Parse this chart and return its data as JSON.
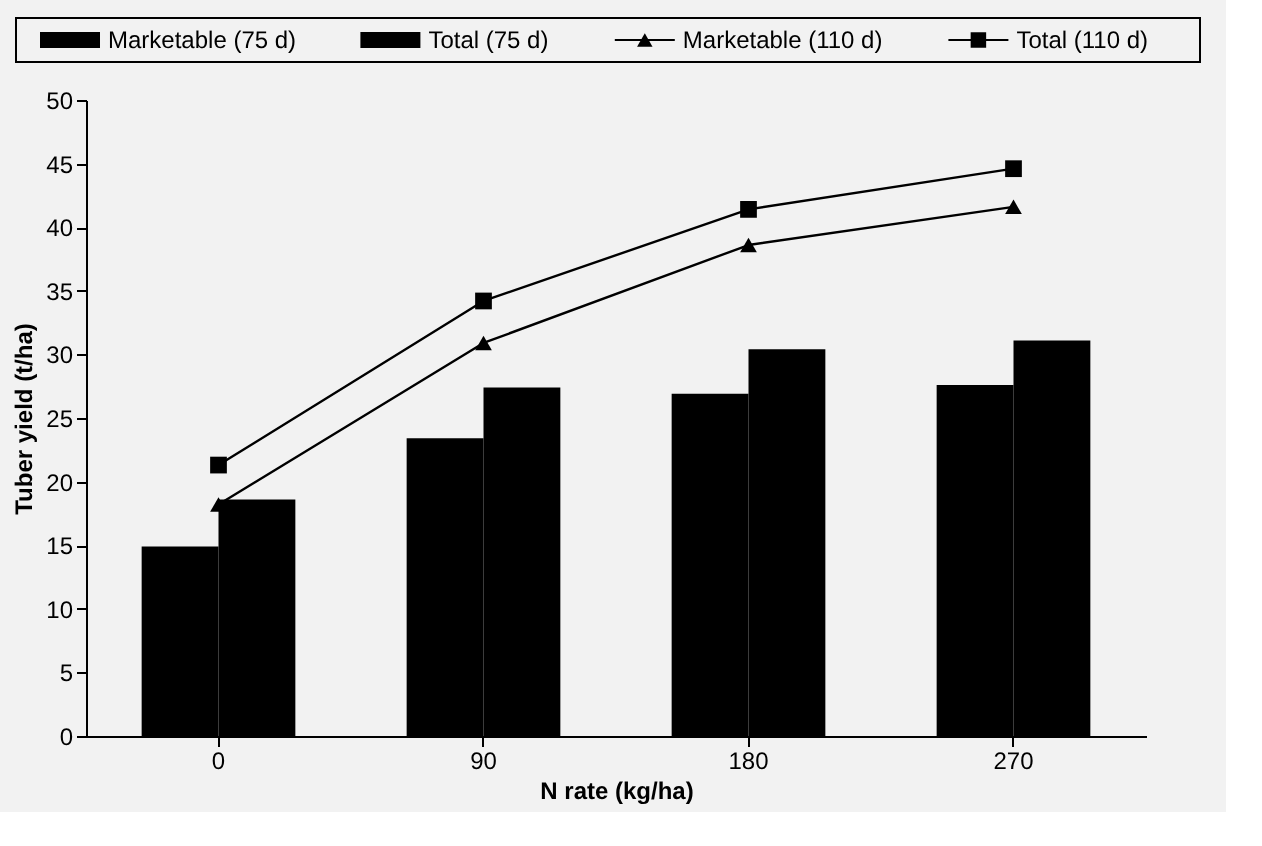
{
  "chart_data": {
    "type": "bar",
    "xlabel": "N rate (kg/ha)",
    "ylabel": "Tuber yield (t/ha)",
    "categories": [
      "0",
      "90",
      "180",
      "270"
    ],
    "series": [
      {
        "name": "Marketable (75 d)",
        "color": "#000000",
        "values": [
          14.9,
          23.4,
          26.9,
          27.6
        ]
      },
      {
        "name": "Total (75 d)",
        "color": "#000000",
        "values": [
          18.6,
          27.4,
          30.4,
          31.1
        ]
      },
      {
        "name": "Marketable (110 d)",
        "type": "line",
        "marker": "triangle",
        "color": "#000000",
        "values": [
          18.2,
          30.9,
          38.6,
          41.6
        ]
      },
      {
        "name": "Total (110 d)",
        "type": "line",
        "marker": "square",
        "color": "#000000",
        "values": [
          21.3,
          34.2,
          41.4,
          44.6
        ]
      }
    ],
    "ylim": [
      0,
      50
    ],
    "yticks": [
      0,
      5,
      10,
      15,
      20,
      25,
      30,
      35,
      40,
      45,
      50
    ],
    "grid": false,
    "legend": "top"
  }
}
